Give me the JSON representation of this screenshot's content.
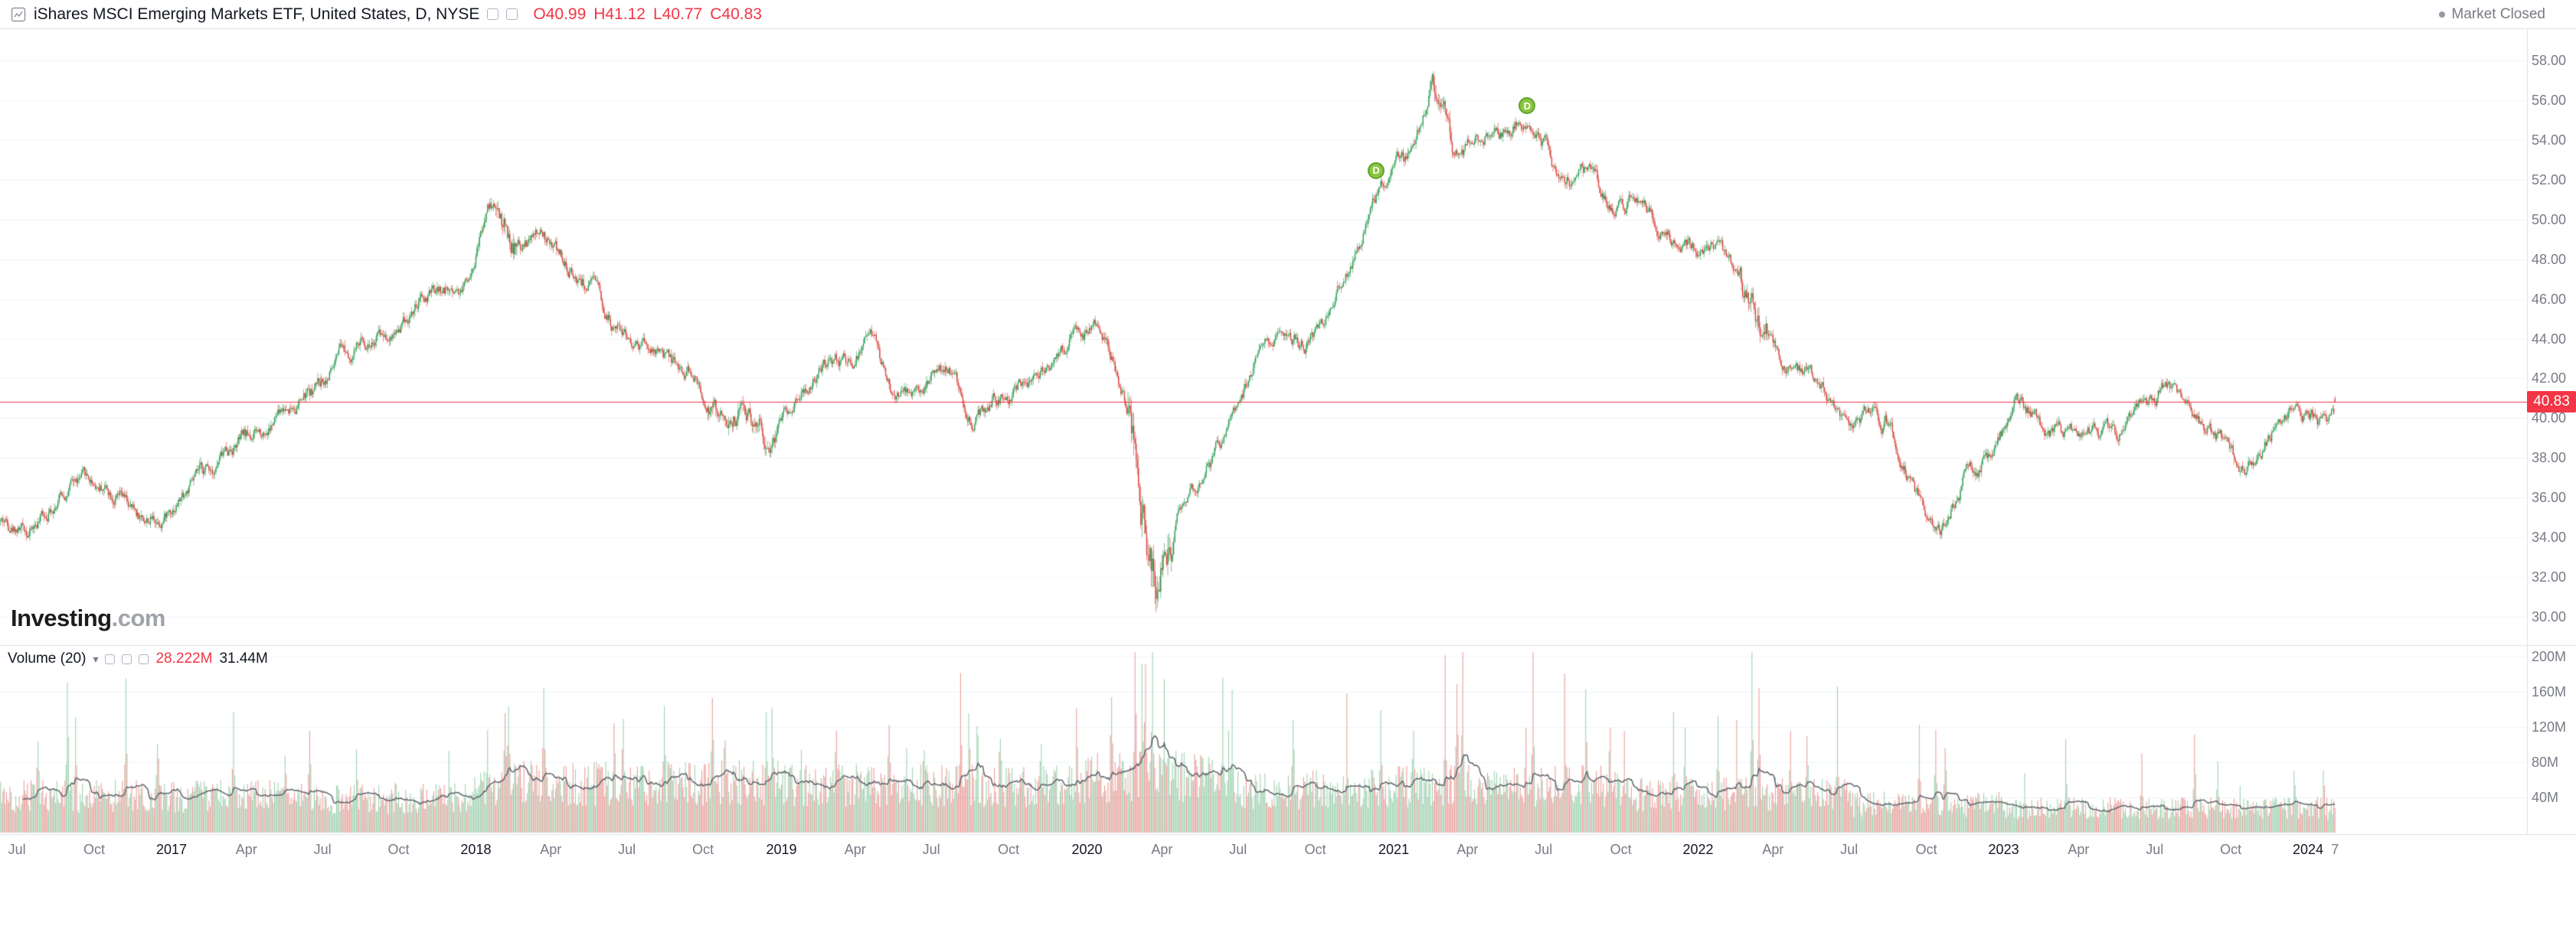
{
  "toolbar": {
    "symbol_title": "iShares MSCI Emerging Markets ETF, United States, D, NYSE",
    "ohlc_display": [
      "O40.99",
      "H41.12",
      "L40.77",
      "C40.83"
    ],
    "market_status": "Market Closed"
  },
  "watermark": {
    "brand": "Investing",
    "suffix": ".com"
  },
  "price_axis": {
    "labels": [
      "58.00",
      "56.00",
      "54.00",
      "52.00",
      "50.00",
      "48.00",
      "46.00",
      "44.00",
      "42.00",
      "40.00",
      "38.00",
      "36.00",
      "34.00",
      "32.00",
      "30.00"
    ],
    "current_price": "40.83"
  },
  "volume_pane": {
    "legend_title": "Volume (20)",
    "volume_value": "28.222M",
    "ma_value": "31.44M",
    "axis_labels": [
      "200M",
      "160M",
      "120M",
      "80M",
      "40M"
    ]
  },
  "time_axis": {
    "ticks": [
      {
        "label": "Jul",
        "date": "2016-07-01",
        "major": false
      },
      {
        "label": "Oct",
        "date": "2016-10-03",
        "major": false
      },
      {
        "label": "2017",
        "date": "2017-01-03",
        "major": true
      },
      {
        "label": "Apr",
        "date": "2017-04-03",
        "major": false
      },
      {
        "label": "Jul",
        "date": "2017-07-03",
        "major": false
      },
      {
        "label": "Oct",
        "date": "2017-10-02",
        "major": false
      },
      {
        "label": "2018",
        "date": "2018-01-02",
        "major": true
      },
      {
        "label": "Apr",
        "date": "2018-04-02",
        "major": false
      },
      {
        "label": "Jul",
        "date": "2018-07-02",
        "major": false
      },
      {
        "label": "Oct",
        "date": "2018-10-01",
        "major": false
      },
      {
        "label": "2019",
        "date": "2019-01-02",
        "major": true
      },
      {
        "label": "Apr",
        "date": "2019-04-01",
        "major": false
      },
      {
        "label": "Jul",
        "date": "2019-07-01",
        "major": false
      },
      {
        "label": "Oct",
        "date": "2019-10-01",
        "major": false
      },
      {
        "label": "2020",
        "date": "2020-01-02",
        "major": true
      },
      {
        "label": "Apr",
        "date": "2020-04-01",
        "major": false
      },
      {
        "label": "Jul",
        "date": "2020-07-01",
        "major": false
      },
      {
        "label": "Oct",
        "date": "2020-10-01",
        "major": false
      },
      {
        "label": "2021",
        "date": "2021-01-04",
        "major": true
      },
      {
        "label": "Apr",
        "date": "2021-04-01",
        "major": false
      },
      {
        "label": "Jul",
        "date": "2021-07-01",
        "major": false
      },
      {
        "label": "Oct",
        "date": "2021-10-01",
        "major": false
      },
      {
        "label": "2022",
        "date": "2022-01-03",
        "major": true
      },
      {
        "label": "Apr",
        "date": "2022-04-01",
        "major": false
      },
      {
        "label": "Jul",
        "date": "2022-07-01",
        "major": false
      },
      {
        "label": "Oct",
        "date": "2022-10-03",
        "major": false
      },
      {
        "label": "2023",
        "date": "2023-01-03",
        "major": true
      },
      {
        "label": "Apr",
        "date": "2023-04-03",
        "major": false
      },
      {
        "label": "Jul",
        "date": "2023-07-03",
        "major": false
      },
      {
        "label": "Oct",
        "date": "2023-10-02",
        "major": false
      },
      {
        "label": "2024",
        "date": "2024-01-02",
        "major": true
      },
      {
        "label": "7",
        "date": "2024-02-07",
        "major": false
      }
    ]
  },
  "markers": [
    {
      "label": "D",
      "date": "2020-12-14"
    },
    {
      "label": "D",
      "date": "2021-06-11"
    }
  ],
  "colors": {
    "up": "#2e9e55",
    "down": "#d8453e",
    "volume_up": "rgba(46,158,85,0.45)",
    "volume_down": "rgba(216,69,62,0.5)",
    "accent": "#f23645",
    "grid": "#f0f3fa",
    "border": "#dcdfe6",
    "axis_text": "#787b86",
    "ma": "#62656e",
    "marker_fill": "#8bc540",
    "marker_border": "#61a32f"
  },
  "chart_data": {
    "type": "candlestick",
    "title": "iShares MSCI Emerging Markets ETF, Daily with Volume (20)",
    "x_range": [
      "2016-06",
      "2024-02"
    ],
    "price_axis_range": [
      28.6,
      59.6
    ],
    "grid_step": 2,
    "ohlc_last": {
      "open": 40.99,
      "high": 41.12,
      "low": 40.77,
      "close": 40.83
    },
    "last_volume_m": 28.222,
    "volume_axis_max_m": 210,
    "base_volatility": 0.3,
    "volatility_periods": [
      {
        "from": "2018-01-25",
        "to": "2018-02-20",
        "vol": 0.55
      },
      {
        "from": "2018-10-05",
        "to": "2018-12-28",
        "vol": 0.42
      },
      {
        "from": "2020-02-20",
        "to": "2020-04-15",
        "vol": 0.95
      },
      {
        "from": "2021-02-16",
        "to": "2021-03-15",
        "vol": 0.5
      },
      {
        "from": "2022-02-20",
        "to": "2022-03-25",
        "vol": 0.55
      }
    ],
    "monthly_close_approx": [
      [
        "2016-06",
        34.8
      ],
      [
        "2016-07",
        34.3
      ],
      [
        "2016-08",
        36.3
      ],
      [
        "2016-09",
        36.9
      ],
      [
        "2016-10",
        36.6
      ],
      [
        "2016-11",
        34.9
      ],
      [
        "2016-12",
        35.0
      ],
      [
        "2017-01",
        36.4
      ],
      [
        "2017-02",
        37.6
      ],
      [
        "2017-03",
        38.9
      ],
      [
        "2017-04",
        39.2
      ],
      [
        "2017-05",
        40.6
      ],
      [
        "2017-06",
        41.3
      ],
      [
        "2017-07",
        43.0
      ],
      [
        "2017-08",
        43.8
      ],
      [
        "2017-09",
        44.4
      ],
      [
        "2017-10",
        45.6
      ],
      [
        "2017-11",
        46.4
      ],
      [
        "2017-12",
        46.8
      ],
      [
        "2018-01",
        51.3
      ],
      [
        "2018-02",
        48.2
      ],
      [
        "2018-03",
        49.2
      ],
      [
        "2018-04",
        47.6
      ],
      [
        "2018-05",
        46.6
      ],
      [
        "2018-06",
        44.2
      ],
      [
        "2018-07",
        43.6
      ],
      [
        "2018-08",
        42.6
      ],
      [
        "2018-09",
        42.2
      ],
      [
        "2018-10",
        39.5
      ],
      [
        "2018-11",
        40.6
      ],
      [
        "2018-12",
        39.0
      ],
      [
        "2019-01",
        41.6
      ],
      [
        "2019-02",
        42.6
      ],
      [
        "2019-03",
        42.8
      ],
      [
        "2019-04",
        44.1
      ],
      [
        "2019-05",
        40.7
      ],
      [
        "2019-06",
        42.2
      ],
      [
        "2019-07",
        42.6
      ],
      [
        "2019-08",
        39.9
      ],
      [
        "2019-09",
        41.1
      ],
      [
        "2019-10",
        41.9
      ],
      [
        "2019-11",
        42.7
      ],
      [
        "2019-12",
        44.4
      ],
      [
        "2020-01",
        44.8
      ],
      [
        "2020-02",
        40.2
      ],
      [
        "2020-03",
        31.2
      ],
      [
        "2020-04",
        35.6
      ],
      [
        "2020-05",
        36.6
      ],
      [
        "2020-06",
        39.8
      ],
      [
        "2020-07",
        42.6
      ],
      [
        "2020-08",
        44.4
      ],
      [
        "2020-09",
        43.8
      ],
      [
        "2020-10",
        45.4
      ],
      [
        "2020-11",
        48.9
      ],
      [
        "2020-12",
        51.9
      ],
      [
        "2021-01",
        53.3
      ],
      [
        "2021-02",
        57.0
      ],
      [
        "2021-03",
        53.0
      ],
      [
        "2021-04",
        54.4
      ],
      [
        "2021-05",
        54.6
      ],
      [
        "2021-06",
        55.4
      ],
      [
        "2021-07",
        51.6
      ],
      [
        "2021-08",
        52.6
      ],
      [
        "2021-09",
        50.4
      ],
      [
        "2021-10",
        51.1
      ],
      [
        "2021-11",
        49.1
      ],
      [
        "2021-12",
        48.9
      ],
      [
        "2022-01",
        48.6
      ],
      [
        "2022-02",
        46.6
      ],
      [
        "2022-03",
        44.9
      ],
      [
        "2022-04",
        42.6
      ],
      [
        "2022-05",
        42.1
      ],
      [
        "2022-06",
        40.2
      ],
      [
        "2022-07",
        39.9
      ],
      [
        "2022-08",
        39.8
      ],
      [
        "2022-09",
        35.9
      ],
      [
        "2022-10",
        34.1
      ],
      [
        "2022-11",
        37.6
      ],
      [
        "2022-12",
        38.1
      ],
      [
        "2023-01",
        41.4
      ],
      [
        "2023-02",
        39.1
      ],
      [
        "2023-03",
        39.4
      ],
      [
        "2023-04",
        39.3
      ],
      [
        "2023-05",
        38.9
      ],
      [
        "2023-06",
        40.6
      ],
      [
        "2023-07",
        41.9
      ],
      [
        "2023-08",
        39.6
      ],
      [
        "2023-09",
        38.8
      ],
      [
        "2023-10",
        37.0
      ],
      [
        "2023-11",
        39.6
      ],
      [
        "2023-12",
        40.5
      ],
      [
        "2024-01",
        39.8
      ],
      [
        "2024-02",
        41.0
      ]
    ],
    "volume_baselines": [
      {
        "until": "2017-07",
        "base": 40
      },
      {
        "until": "2018-01",
        "base": 38
      },
      {
        "until": "2019-01",
        "base": 55
      },
      {
        "until": "2020-01",
        "base": 52
      },
      {
        "until": "2020-07",
        "base": 62
      },
      {
        "until": "2021-01",
        "base": 48
      },
      {
        "until": "2021-10",
        "base": 52
      },
      {
        "until": "2022-07",
        "base": 42
      },
      {
        "until": "2023-01",
        "base": 32
      },
      {
        "until": "2025-01",
        "base": 27
      }
    ],
    "volume_spikes": [
      [
        "2016-07-27",
        70
      ],
      [
        "2016-08-31",
        150
      ],
      [
        "2016-09-09",
        85
      ],
      [
        "2016-11-09",
        140
      ],
      [
        "2016-12-16",
        80
      ],
      [
        "2017-03-17",
        65
      ],
      [
        "2017-05-18",
        60
      ],
      [
        "2017-06-16",
        70
      ],
      [
        "2017-08-11",
        65
      ],
      [
        "2017-11-30",
        65
      ],
      [
        "2018-01-16",
        55
      ],
      [
        "2018-02-06",
        115
      ],
      [
        "2018-02-09",
        95
      ],
      [
        "2018-03-23",
        80
      ],
      [
        "2018-06-15",
        85
      ],
      [
        "2018-06-27",
        75
      ],
      [
        "2018-08-15",
        70
      ],
      [
        "2018-10-11",
        90
      ],
      [
        "2018-10-26",
        75
      ],
      [
        "2018-12-14",
        70
      ],
      [
        "2018-12-21",
        105
      ],
      [
        "2019-01-25",
        60
      ],
      [
        "2019-03-08",
        65
      ],
      [
        "2019-05-10",
        80
      ],
      [
        "2019-05-31",
        70
      ],
      [
        "2019-06-21",
        65
      ],
      [
        "2019-08-05",
        140
      ],
      [
        "2019-08-14",
        95
      ],
      [
        "2019-08-23",
        105
      ],
      [
        "2019-09-20",
        65
      ],
      [
        "2019-11-08",
        60
      ],
      [
        "2019-12-20",
        70
      ],
      [
        "2020-01-31",
        80
      ],
      [
        "2020-02-28",
        150
      ],
      [
        "2020-03-09",
        130
      ],
      [
        "2020-03-12",
        145
      ],
      [
        "2020-03-20",
        135
      ],
      [
        "2020-04-03",
        85
      ],
      [
        "2020-06-12",
        100
      ],
      [
        "2020-06-19",
        85
      ],
      [
        "2020-09-04",
        70
      ],
      [
        "2020-11-09",
        80
      ],
      [
        "2020-12-18",
        75
      ],
      [
        "2021-01-27",
        85
      ],
      [
        "2021-03-05",
        105
      ],
      [
        "2021-03-19",
        115
      ],
      [
        "2021-03-26",
        165
      ],
      [
        "2021-06-18",
        170
      ],
      [
        "2021-07-27",
        110
      ],
      [
        "2021-08-20",
        85
      ],
      [
        "2021-09-20",
        75
      ],
      [
        "2021-12-03",
        80
      ],
      [
        "2021-12-17",
        70
      ],
      [
        "2022-01-26",
        75
      ],
      [
        "2022-03-08",
        155
      ],
      [
        "2022-03-16",
        140
      ],
      [
        "2022-04-22",
        95
      ],
      [
        "2022-05-12",
        80
      ],
      [
        "2022-06-17",
        100
      ],
      [
        "2022-09-23",
        65
      ],
      [
        "2022-10-13",
        80
      ],
      [
        "2022-10-25",
        70
      ],
      [
        "2023-01-27",
        50
      ],
      [
        "2023-03-17",
        70
      ],
      [
        "2023-06-16",
        60
      ],
      [
        "2023-08-18",
        75
      ],
      [
        "2023-09-15",
        55
      ],
      [
        "2023-12-15",
        50
      ],
      [
        "2024-01-19",
        45
      ]
    ]
  }
}
